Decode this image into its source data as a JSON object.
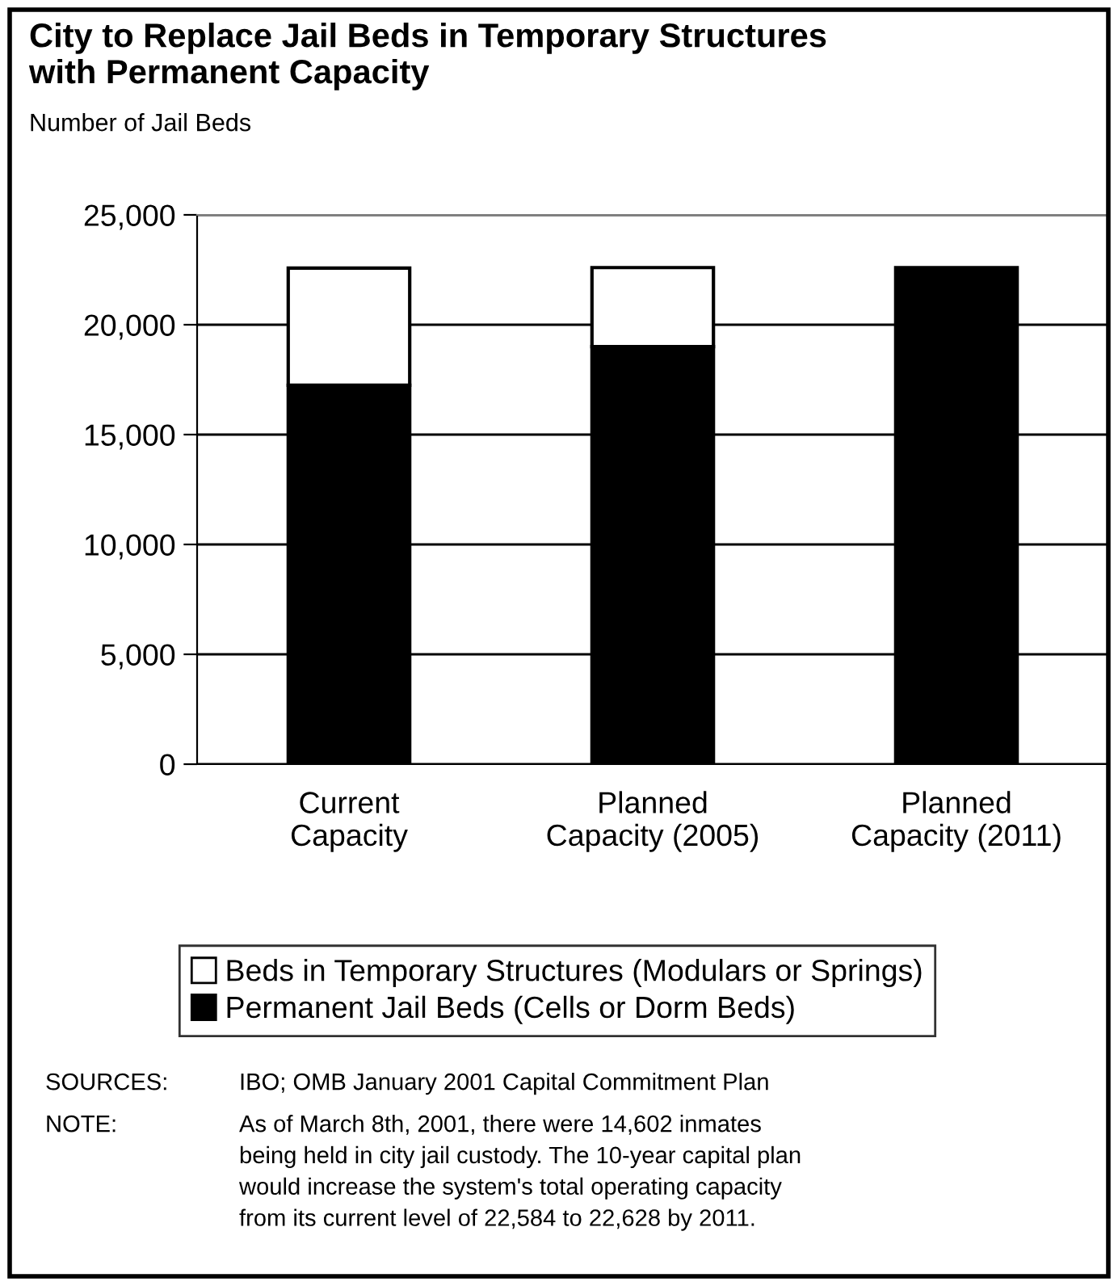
{
  "chart_data": {
    "type": "bar",
    "title": "City to Replace Jail Beds in Temporary Structures\nwith Permanent Capacity",
    "subtitle": "Number of Jail Beds",
    "categories": [
      "Current\nCapacity",
      "Planned\nCapacity (2005)",
      "Planned\nCapacity (2011)"
    ],
    "stacked": true,
    "series": [
      {
        "name": "Permanent Jail Beds (Cells or Dorm Beds)",
        "color": "#000000",
        "values": [
          17250,
          19000,
          22600
        ]
      },
      {
        "name": "Beds in Temporary Structures (Modulars or Springs)",
        "color": "#ffffff",
        "values": [
          5330,
          3600,
          null
        ]
      }
    ],
    "ylim": [
      0,
      25000
    ],
    "yticks": [
      {
        "value": 0,
        "label": "0"
      },
      {
        "value": 5000,
        "label": "5,000"
      },
      {
        "value": 10000,
        "label": "10,000"
      },
      {
        "value": 15000,
        "label": "15,000"
      },
      {
        "value": 20000,
        "label": "20,000"
      },
      {
        "value": 25000,
        "label": "25,000"
      }
    ],
    "grid": "y",
    "legend": "bottom",
    "annotations": [
      "SOURCES:",
      "IBO; OMB January 2001 Capital Commitment Plan",
      "NOTE:",
      "As of March 8th, 2001, there were 14,602 inmates\nbeing held in city jail custody. The 10-year capital plan\nwould increase the system's total operating capacity\nfrom its current level of 22,584 to 22,628 by 2011."
    ]
  }
}
